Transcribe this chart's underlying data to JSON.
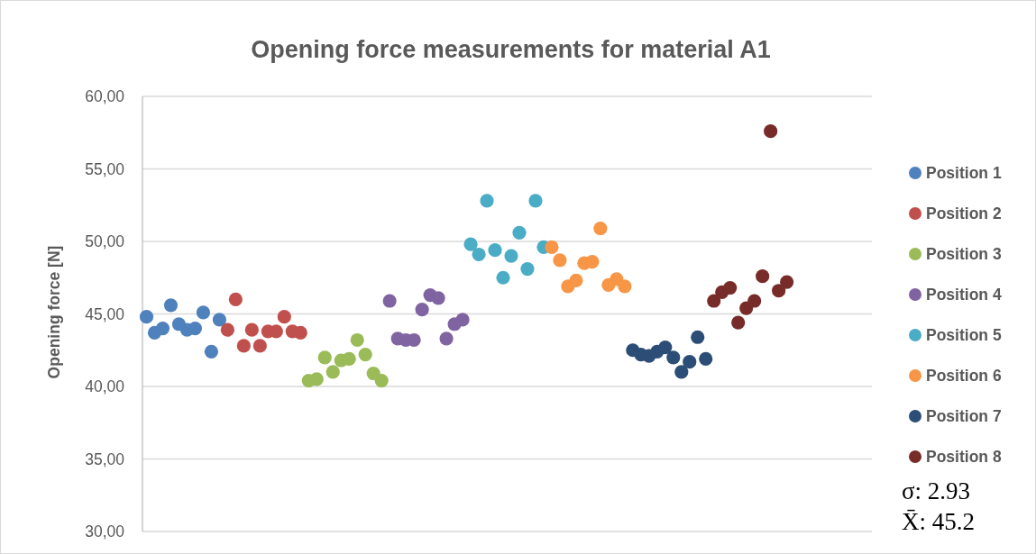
{
  "chart_data": {
    "type": "scatter",
    "title": "Opening force measurements for material A1",
    "ylabel": "Opening force [N]",
    "categories": [
      null,
      null,
      null,
      null,
      null,
      null,
      null,
      null,
      null,
      null,
      null,
      null,
      null,
      null,
      null,
      null,
      null,
      null,
      null,
      null,
      null,
      null,
      null,
      null,
      null,
      null,
      null,
      null,
      null,
      null,
      null,
      null,
      null,
      null,
      null,
      null,
      null,
      null,
      null,
      null,
      null,
      null,
      null,
      null,
      null,
      null,
      null,
      null,
      null,
      null,
      null,
      null,
      null,
      null,
      null,
      null,
      null,
      null,
      null,
      null,
      null,
      null,
      null,
      null,
      null,
      null,
      null,
      null,
      null,
      null,
      null,
      null,
      null,
      null,
      null,
      null,
      null,
      null,
      null,
      null,
      null,
      null,
      null,
      null,
      null,
      null,
      null,
      null,
      null,
      null
    ],
    "ylim": [
      30,
      60
    ],
    "yticks": [
      {
        "value": 30,
        "label": "30,00"
      },
      {
        "value": 35,
        "label": "35,00"
      },
      {
        "value": 40,
        "label": "40,00"
      },
      {
        "value": 45,
        "label": "45,00"
      },
      {
        "value": 50,
        "label": "50,00"
      },
      {
        "value": 55,
        "label": "55,00"
      },
      {
        "value": 60,
        "label": "60,00"
      }
    ],
    "tick_labels": "y",
    "grid": "y",
    "legend": "right",
    "marker": "circle",
    "series": [
      {
        "name": "Position 1",
        "color": "#4f81bd",
        "values": [
          44.8,
          43.7,
          44.0,
          45.6,
          44.3,
          43.9,
          44.0,
          45.1,
          42.4,
          44.6,
          null,
          null,
          null,
          null,
          null,
          null,
          null,
          null,
          null,
          null,
          null,
          null,
          null,
          null,
          null,
          null,
          null,
          null,
          null,
          null,
          null,
          null,
          null,
          null,
          null,
          null,
          null,
          null,
          null,
          null,
          null,
          null,
          null,
          null,
          null,
          null,
          null,
          null,
          null,
          null,
          null,
          null,
          null,
          null,
          null,
          null,
          null,
          null,
          null,
          null,
          null,
          null,
          null,
          null,
          null,
          null,
          null,
          null,
          null,
          null,
          null,
          null,
          null,
          null,
          null,
          null,
          null,
          null,
          null,
          null,
          null,
          null,
          null,
          null,
          null,
          null,
          null,
          null,
          null,
          null
        ]
      },
      {
        "name": "Position 2",
        "color": "#c0504d",
        "values": [
          null,
          null,
          null,
          null,
          null,
          null,
          null,
          null,
          null,
          null,
          43.9,
          46.0,
          42.8,
          43.9,
          42.8,
          43.8,
          43.8,
          44.8,
          43.8,
          43.7,
          null,
          null,
          null,
          null,
          null,
          null,
          null,
          null,
          null,
          null,
          null,
          null,
          null,
          null,
          null,
          null,
          null,
          null,
          null,
          null,
          null,
          null,
          null,
          null,
          null,
          null,
          null,
          null,
          null,
          null,
          null,
          null,
          null,
          null,
          null,
          null,
          null,
          null,
          null,
          null,
          null,
          null,
          null,
          null,
          null,
          null,
          null,
          null,
          null,
          null,
          null,
          null,
          null,
          null,
          null,
          null,
          null,
          null,
          null,
          null,
          null,
          null,
          null,
          null,
          null,
          null,
          null,
          null,
          null,
          null
        ]
      },
      {
        "name": "Position 3",
        "color": "#9bbb59",
        "values": [
          null,
          null,
          null,
          null,
          null,
          null,
          null,
          null,
          null,
          null,
          null,
          null,
          null,
          null,
          null,
          null,
          null,
          null,
          null,
          null,
          40.4,
          40.5,
          42.0,
          41.0,
          41.8,
          41.9,
          43.2,
          42.2,
          40.9,
          40.4,
          null,
          null,
          null,
          null,
          null,
          null,
          null,
          null,
          null,
          null,
          null,
          null,
          null,
          null,
          null,
          null,
          null,
          null,
          null,
          null,
          null,
          null,
          null,
          null,
          null,
          null,
          null,
          null,
          null,
          null,
          null,
          null,
          null,
          null,
          null,
          null,
          null,
          null,
          null,
          null,
          null,
          null,
          null,
          null,
          null,
          null,
          null,
          null,
          null,
          null,
          null,
          null,
          null,
          null,
          null,
          null,
          null,
          null,
          null,
          null
        ]
      },
      {
        "name": "Position 4",
        "color": "#8064a2",
        "values": [
          null,
          null,
          null,
          null,
          null,
          null,
          null,
          null,
          null,
          null,
          null,
          null,
          null,
          null,
          null,
          null,
          null,
          null,
          null,
          null,
          null,
          null,
          null,
          null,
          null,
          null,
          null,
          null,
          null,
          null,
          45.9,
          43.3,
          43.2,
          43.2,
          45.3,
          46.3,
          46.1,
          43.3,
          44.3,
          44.6,
          null,
          null,
          null,
          null,
          null,
          null,
          null,
          null,
          null,
          null,
          null,
          null,
          null,
          null,
          null,
          null,
          null,
          null,
          null,
          null,
          null,
          null,
          null,
          null,
          null,
          null,
          null,
          null,
          null,
          null,
          null,
          null,
          null,
          null,
          null,
          null,
          null,
          null,
          null,
          null,
          null,
          null,
          null,
          null,
          null,
          null,
          null,
          null,
          null,
          null
        ]
      },
      {
        "name": "Position 5",
        "color": "#4bacc6",
        "values": [
          null,
          null,
          null,
          null,
          null,
          null,
          null,
          null,
          null,
          null,
          null,
          null,
          null,
          null,
          null,
          null,
          null,
          null,
          null,
          null,
          null,
          null,
          null,
          null,
          null,
          null,
          null,
          null,
          null,
          null,
          null,
          null,
          null,
          null,
          null,
          null,
          null,
          null,
          null,
          null,
          49.8,
          49.1,
          52.8,
          49.4,
          47.5,
          49.0,
          50.6,
          48.1,
          52.8,
          49.6,
          null,
          null,
          null,
          null,
          null,
          null,
          null,
          null,
          null,
          null,
          null,
          null,
          null,
          null,
          null,
          null,
          null,
          null,
          null,
          null,
          null,
          null,
          null,
          null,
          null,
          null,
          null,
          null,
          null,
          null,
          null,
          null,
          null,
          null,
          null,
          null,
          null,
          null,
          null,
          null
        ]
      },
      {
        "name": "Position 6",
        "color": "#f79646",
        "values": [
          null,
          null,
          null,
          null,
          null,
          null,
          null,
          null,
          null,
          null,
          null,
          null,
          null,
          null,
          null,
          null,
          null,
          null,
          null,
          null,
          null,
          null,
          null,
          null,
          null,
          null,
          null,
          null,
          null,
          null,
          null,
          null,
          null,
          null,
          null,
          null,
          null,
          null,
          null,
          null,
          null,
          null,
          null,
          null,
          null,
          null,
          null,
          null,
          null,
          null,
          49.6,
          48.7,
          46.9,
          47.3,
          48.5,
          48.6,
          50.9,
          47.0,
          47.4,
          46.9,
          null,
          null,
          null,
          null,
          null,
          null,
          null,
          null,
          null,
          null,
          null,
          null,
          null,
          null,
          null,
          null,
          null,
          null,
          null,
          null,
          null,
          null,
          null,
          null,
          null,
          null,
          null,
          null,
          null,
          null
        ]
      },
      {
        "name": "Position 7",
        "color": "#2c4d75",
        "values": [
          null,
          null,
          null,
          null,
          null,
          null,
          null,
          null,
          null,
          null,
          null,
          null,
          null,
          null,
          null,
          null,
          null,
          null,
          null,
          null,
          null,
          null,
          null,
          null,
          null,
          null,
          null,
          null,
          null,
          null,
          null,
          null,
          null,
          null,
          null,
          null,
          null,
          null,
          null,
          null,
          null,
          null,
          null,
          null,
          null,
          null,
          null,
          null,
          null,
          null,
          null,
          null,
          null,
          null,
          null,
          null,
          null,
          null,
          null,
          null,
          42.5,
          42.2,
          42.1,
          42.4,
          42.7,
          42.0,
          41.0,
          41.7,
          43.4,
          41.9,
          null,
          null,
          null,
          null,
          null,
          null,
          null,
          null,
          null,
          null,
          null,
          null,
          null,
          null,
          null,
          null,
          null,
          null,
          null,
          null
        ]
      },
      {
        "name": "Position 8",
        "color": "#772c2a",
        "values": [
          null,
          null,
          null,
          null,
          null,
          null,
          null,
          null,
          null,
          null,
          null,
          null,
          null,
          null,
          null,
          null,
          null,
          null,
          null,
          null,
          null,
          null,
          null,
          null,
          null,
          null,
          null,
          null,
          null,
          null,
          null,
          null,
          null,
          null,
          null,
          null,
          null,
          null,
          null,
          null,
          null,
          null,
          null,
          null,
          null,
          null,
          null,
          null,
          null,
          null,
          null,
          null,
          null,
          null,
          null,
          null,
          null,
          null,
          null,
          null,
          null,
          null,
          null,
          null,
          null,
          null,
          null,
          null,
          null,
          null,
          45.9,
          46.5,
          46.8,
          44.4,
          45.4,
          45.9,
          47.6,
          57.6,
          46.6,
          47.2,
          null,
          null,
          null,
          null,
          null,
          null,
          null,
          null,
          null,
          null
        ]
      }
    ],
    "annotations": [
      "σ: 2.93",
      "X̄: 45.2"
    ]
  }
}
